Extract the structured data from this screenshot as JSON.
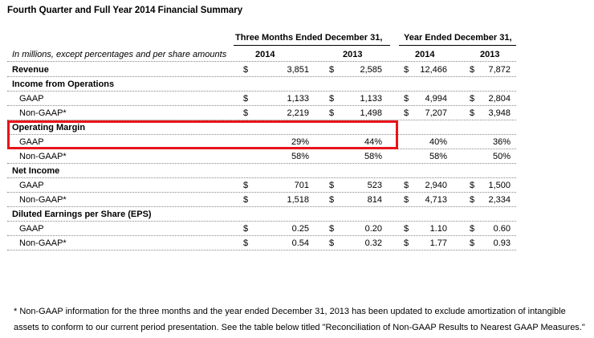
{
  "title": "Fourth Quarter and Full Year 2014 Financial Summary",
  "header": {
    "three_months": "Three Months Ended December 31,",
    "year_ended": "Year Ended December 31,",
    "units_note": "In millions, except percentages and per share amounts",
    "y2014a": "2014",
    "y2013a": "2013",
    "y2014b": "2014",
    "y2013b": "2013"
  },
  "rows": [
    {
      "label": "Revenue",
      "bold": true,
      "d1": "$",
      "v1": "3,851",
      "d2": "$",
      "v2": "2,585",
      "d3": "$",
      "v3": "12,466",
      "d4": "$",
      "v4": "7,872"
    },
    {
      "label": "Income from Operations",
      "bold": true
    },
    {
      "label": "GAAP",
      "indent": true,
      "d1": "$",
      "v1": "1,133",
      "d2": "$",
      "v2": "1,133",
      "d3": "$",
      "v3": "4,994",
      "d4": "$",
      "v4": "2,804"
    },
    {
      "label": "Non-GAAP*",
      "indent": true,
      "d1": "$",
      "v1": "2,219",
      "d2": "$",
      "v2": "1,498",
      "d3": "$",
      "v3": "7,207",
      "d4": "$",
      "v4": "3,948"
    },
    {
      "label": "Operating Margin",
      "bold": true
    },
    {
      "label": "GAAP",
      "indent": true,
      "v1": "29%",
      "v2": "44%",
      "v3": "40%",
      "v4": "36%"
    },
    {
      "label": "Non-GAAP*",
      "indent": true,
      "v1": "58%",
      "v2": "58%",
      "v3": "58%",
      "v4": "50%"
    },
    {
      "label": "Net Income",
      "bold": true
    },
    {
      "label": "GAAP",
      "indent": true,
      "d1": "$",
      "v1": "701",
      "d2": "$",
      "v2": "523",
      "d3": "$",
      "v3": "2,940",
      "d4": "$",
      "v4": "1,500"
    },
    {
      "label": "Non-GAAP*",
      "indent": true,
      "d1": "$",
      "v1": "1,518",
      "d2": "$",
      "v2": "814",
      "d3": "$",
      "v3": "4,713",
      "d4": "$",
      "v4": "2,334"
    },
    {
      "label": "Diluted Earnings per Share (EPS)",
      "bold": true
    },
    {
      "label": "GAAP",
      "indent": true,
      "d1": "$",
      "v1": "0.25",
      "d2": "$",
      "v2": "0.20",
      "d3": "$",
      "v3": "1.10",
      "d4": "$",
      "v4": "0.60"
    },
    {
      "label": "Non-GAAP*",
      "indent": true,
      "d1": "$",
      "v1": "0.54",
      "d2": "$",
      "v2": "0.32",
      "d3": "$",
      "v3": "1.77",
      "d4": "$",
      "v4": "0.93"
    }
  ],
  "footnote_line1": "* Non-GAAP information for the three months and the year ended December 31, 2013 has been updated to exclude amortization of intangible",
  "footnote_line2": "assets to conform to our current period presentation. See the table below titled \"Reconciliation of Non-GAAP Results to Nearest GAAP Measures.\"",
  "highlight_color": "#e8141a"
}
